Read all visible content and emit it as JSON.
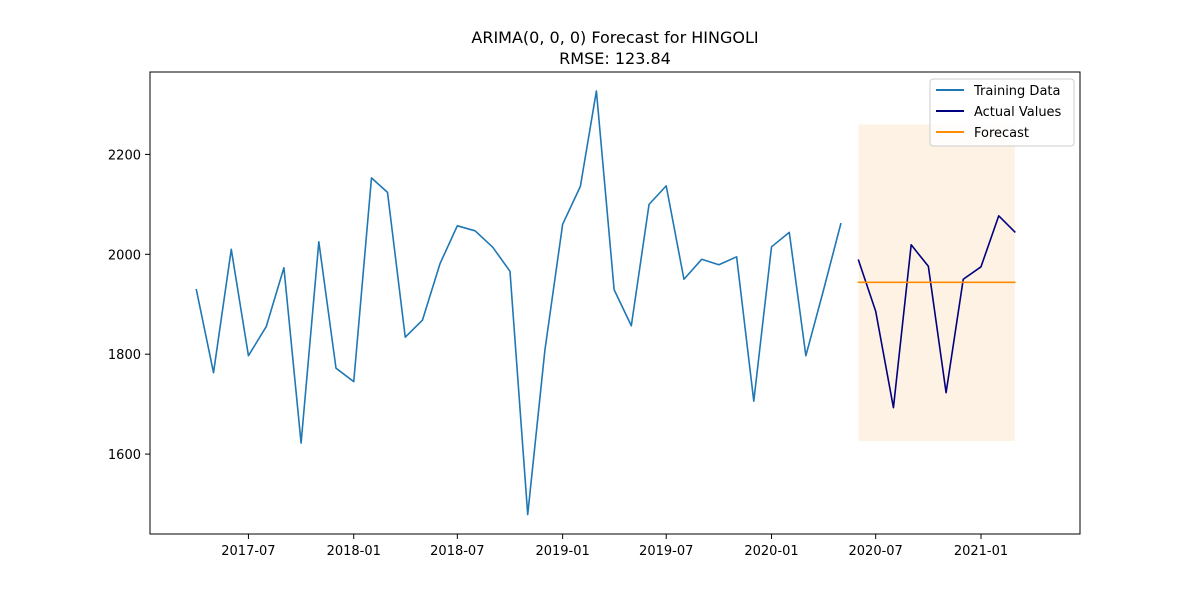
{
  "chart_data": {
    "type": "line",
    "title": "ARIMA(0, 0, 0) Forecast for HINGOLI",
    "subtitle": "RMSE: 123.84",
    "xlabel": "",
    "ylabel": "",
    "x_axis": "date",
    "xlim": [
      "2017-01-10",
      "2021-06-23"
    ],
    "ylim": [
      1440,
      2365
    ],
    "x_ticks": [
      "2017-07",
      "2018-01",
      "2018-07",
      "2019-01",
      "2019-07",
      "2020-01",
      "2020-07",
      "2021-01"
    ],
    "y_ticks": [
      1600,
      1800,
      2000,
      2200
    ],
    "grid": false,
    "legend_position": "top-right",
    "series": [
      {
        "name": "Training Data",
        "color": "#1f77b4",
        "x": [
          "2017-04",
          "2017-05",
          "2017-06",
          "2017-07",
          "2017-08",
          "2017-09",
          "2017-10",
          "2017-11",
          "2017-12",
          "2018-01",
          "2018-02",
          "2018-03",
          "2018-04",
          "2018-05",
          "2018-06",
          "2018-07",
          "2018-08",
          "2018-09",
          "2018-10",
          "2018-11",
          "2018-12",
          "2019-01",
          "2019-02",
          "2019-03",
          "2019-04",
          "2019-05",
          "2019-06",
          "2019-07",
          "2019-08",
          "2019-09",
          "2019-10",
          "2019-11",
          "2019-12",
          "2020-01",
          "2020-02",
          "2020-03",
          "2020-04",
          "2020-05"
        ],
        "values": [
          1929,
          1763,
          2010,
          1797,
          1855,
          1973,
          1622,
          2025,
          1772,
          1745,
          2153,
          2124,
          1834,
          1868,
          1982,
          2057,
          2047,
          2014,
          1966,
          1479,
          1808,
          2060,
          2136,
          2327,
          1929,
          1857,
          2100,
          2137,
          1950,
          1990,
          1979,
          1995,
          1706,
          2015,
          2044,
          1797,
          1929,
          2061
        ]
      },
      {
        "name": "Actual Values",
        "color": "#000080",
        "x": [
          "2020-06",
          "2020-07",
          "2020-08",
          "2020-09",
          "2020-10",
          "2020-11",
          "2020-12",
          "2021-01",
          "2021-02",
          "2021-03"
        ],
        "values": [
          1988,
          1886,
          1693,
          2019,
          1976,
          1723,
          1950,
          1975,
          2077,
          2045
        ]
      },
      {
        "name": "Forecast",
        "color": "#ff8c00",
        "x": [
          "2020-06",
          "2020-07",
          "2020-08",
          "2020-09",
          "2020-10",
          "2020-11",
          "2020-12",
          "2021-01",
          "2021-02",
          "2021-03"
        ],
        "values": [
          1944,
          1944,
          1944,
          1944,
          1944,
          1944,
          1944,
          1944,
          1944,
          1944
        ]
      }
    ],
    "confidence_band": {
      "color": "#fdf2e3",
      "x_start": "2020-06",
      "x_end": "2021-03",
      "lower": 1626,
      "upper": 2260
    }
  }
}
